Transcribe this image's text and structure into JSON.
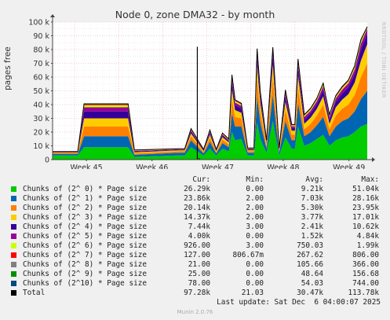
{
  "title": "Node 0, zone DMA32 - by month",
  "watermark": "RRDTOOL / TOBI OETIKER",
  "footer": "Last update: Sat Dec  6 04:00:07 2025",
  "version": "Munin 2.0.76",
  "legend_headers": {
    "cur": "Cur:",
    "min": "Min:",
    "avg": "Avg:",
    "max": "Max:"
  },
  "legend": [
    {
      "label": "Chunks of (2^ 0) * Page size",
      "color": "#00cc00",
      "cur": "26.29k",
      "min": "0.00",
      "avg": "9.21k",
      "max": "51.04k"
    },
    {
      "label": "Chunks of (2^ 1) * Page size",
      "color": "#0066b3",
      "cur": "23.86k",
      "min": "2.00",
      "avg": "7.03k",
      "max": "28.16k"
    },
    {
      "label": "Chunks of (2^ 2) * Page size",
      "color": "#ff8000",
      "cur": "20.14k",
      "min": "2.00",
      "avg": "5.30k",
      "max": "23.95k"
    },
    {
      "label": "Chunks of (2^ 3) * Page size",
      "color": "#ffcc00",
      "cur": "14.37k",
      "min": "2.00",
      "avg": "3.77k",
      "max": "17.01k"
    },
    {
      "label": "Chunks of (2^ 4) * Page size",
      "color": "#330099",
      "cur": "7.44k",
      "min": "3.00",
      "avg": "2.41k",
      "max": "10.62k"
    },
    {
      "label": "Chunks of (2^ 5) * Page size",
      "color": "#990099",
      "cur": "4.00k",
      "min": "0.00",
      "avg": "1.52k",
      "max": "4.84k"
    },
    {
      "label": "Chunks of (2^ 6) * Page size",
      "color": "#ccff00",
      "cur": "926.00",
      "min": "3.00",
      "avg": "750.03",
      "max": "1.99k"
    },
    {
      "label": "Chunks of (2^ 7) * Page size",
      "color": "#ff0000",
      "cur": "127.00",
      "min": "806.67m",
      "avg": "267.62",
      "max": "806.00"
    },
    {
      "label": "Chunks of (2^ 8) * Page size",
      "color": "#808080",
      "cur": "21.00",
      "min": "0.00",
      "avg": "105.66",
      "max": "366.00"
    },
    {
      "label": "Chunks of (2^ 9) * Page size",
      "color": "#008f00",
      "cur": "25.00",
      "min": "0.00",
      "avg": "48.64",
      "max": "156.68"
    },
    {
      "label": "Chunks of (2^10) * Page size",
      "color": "#00487d",
      "cur": "78.00",
      "min": "0.00",
      "avg": "54.03",
      "max": "744.00"
    },
    {
      "label": "Total",
      "color": "#000000",
      "cur": "97.28k",
      "min": "21.03",
      "avg": "30.47k",
      "max": "113.78k"
    }
  ],
  "chart_data": {
    "type": "area",
    "title": "Node 0, zone DMA32 - by month",
    "ylabel": "pages free",
    "ylim": [
      0,
      100000
    ],
    "yticks": [
      0,
      10000,
      20000,
      30000,
      40000,
      50000,
      60000,
      70000,
      80000,
      90000,
      100000
    ],
    "ytick_labels": [
      "0",
      "10 k",
      "20 k",
      "30 k",
      "40 k",
      "50 k",
      "60 k",
      "70 k",
      "80 k",
      "90 k",
      "100 k"
    ],
    "xticks": [
      "Week 45",
      "Week 46",
      "Week 47",
      "Week 48",
      "Week 49"
    ],
    "grid": true,
    "stacked": true,
    "x": [
      0,
      4,
      5,
      12,
      13,
      20,
      21,
      22,
      24,
      25,
      26,
      27,
      28,
      28.5,
      29,
      30,
      31,
      32,
      32.5,
      33,
      34,
      35,
      36,
      37,
      38,
      38.5,
      39,
      40,
      41,
      42,
      43,
      44,
      45,
      46,
      47,
      48,
      49,
      50
    ],
    "series": [
      {
        "name": "Chunks of (2^ 0) * Page size",
        "values": [
          3000,
          3000,
          9000,
          9000,
          2000,
          3000,
          3000,
          9000,
          3000,
          8000,
          3000,
          8000,
          6000,
          20000,
          14000,
          15000,
          3000,
          3000,
          27000,
          15000,
          5000,
          28000,
          3000,
          16000,
          8000,
          8000,
          24000,
          10000,
          12000,
          15000,
          18000,
          10000,
          14000,
          16000,
          17000,
          20000,
          24000,
          26000
        ]
      },
      {
        "name": "Chunks of (2^ 1) * Page size",
        "values": [
          1000,
          1000,
          8000,
          8000,
          1500,
          2000,
          2000,
          5000,
          1500,
          5000,
          1500,
          4000,
          3000,
          14000,
          10000,
          9000,
          2000,
          2000,
          19000,
          12000,
          3000,
          19000,
          2000,
          12000,
          6000,
          6000,
          17000,
          7000,
          8000,
          10000,
          13000,
          7000,
          10000,
          12000,
          13000,
          15000,
          20000,
          24000
        ]
      },
      {
        "name": "Chunks of (2^ 2) * Page size",
        "values": [
          600,
          600,
          7000,
          7000,
          1000,
          1000,
          1000,
          3000,
          1000,
          3000,
          1000,
          2500,
          2000,
          10000,
          7000,
          6000,
          1000,
          1000,
          13000,
          8000,
          2000,
          13000,
          1000,
          8000,
          4000,
          4000,
          12000,
          5000,
          6000,
          7000,
          9000,
          5000,
          8000,
          9000,
          10000,
          12000,
          16000,
          20000
        ]
      },
      {
        "name": "Chunks of (2^ 3) * Page size",
        "values": [
          400,
          400,
          6000,
          6000,
          800,
          700,
          700,
          2000,
          700,
          2000,
          700,
          1800,
          1500,
          7000,
          5000,
          4000,
          800,
          800,
          9000,
          6000,
          1500,
          9000,
          800,
          6000,
          3000,
          3000,
          8000,
          4000,
          4500,
          5000,
          6000,
          4000,
          6000,
          6500,
          7500,
          9000,
          12000,
          14000
        ]
      },
      {
        "name": "Chunks of (2^ 4) * Page size",
        "values": [
          300,
          300,
          5000,
          5000,
          600,
          500,
          500,
          1500,
          500,
          1500,
          500,
          1200,
          1000,
          5000,
          3500,
          3000,
          600,
          600,
          6000,
          4000,
          1000,
          6000,
          600,
          4000,
          2000,
          2000,
          5500,
          3000,
          3000,
          3500,
          4500,
          3000,
          4000,
          4500,
          5000,
          6000,
          8000,
          7400
        ]
      },
      {
        "name": "Chunks of (2^ 5) * Page size",
        "values": [
          200,
          200,
          3000,
          3000,
          400,
          300,
          300,
          900,
          300,
          900,
          300,
          800,
          700,
          3000,
          2000,
          2000,
          400,
          400,
          3500,
          2500,
          700,
          3500,
          400,
          2500,
          1200,
          1200,
          3500,
          2000,
          2000,
          2200,
          2800,
          2000,
          2500,
          2800,
          3000,
          3500,
          4200,
          4000
        ]
      },
      {
        "name": "Chunks of (2^ 6) * Page size",
        "values": [
          150,
          150,
          1500,
          1500,
          300,
          200,
          200,
          500,
          200,
          500,
          200,
          500,
          400,
          1500,
          1000,
          1000,
          300,
          300,
          1800,
          1200,
          400,
          1800,
          300,
          1200,
          700,
          700,
          1800,
          900,
          1000,
          1100,
          1300,
          900,
          1100,
          1200,
          1300,
          1500,
          1700,
          926
        ]
      },
      {
        "name": "Chunks of (2^ 7) * Page size",
        "values": [
          100,
          100,
          500,
          500,
          200,
          100,
          100,
          300,
          100,
          300,
          100,
          250,
          200,
          600,
          500,
          450,
          150,
          150,
          700,
          500,
          200,
          700,
          150,
          500,
          300,
          300,
          700,
          400,
          400,
          450,
          500,
          400,
          450,
          500,
          500,
          600,
          700,
          127
        ]
      },
      {
        "name": "Chunks of (2^ 8) * Page size",
        "values": [
          60,
          60,
          200,
          200,
          100,
          60,
          60,
          150,
          60,
          150,
          60,
          120,
          100,
          250,
          200,
          200,
          80,
          80,
          300,
          200,
          100,
          300,
          80,
          200,
          150,
          150,
          300,
          180,
          180,
          200,
          220,
          180,
          200,
          220,
          220,
          250,
          300,
          21
        ]
      },
      {
        "name": "Chunks of (2^ 9) * Page size",
        "values": [
          40,
          40,
          100,
          100,
          60,
          40,
          40,
          80,
          40,
          80,
          40,
          70,
          60,
          120,
          100,
          100,
          50,
          50,
          140,
          100,
          60,
          140,
          50,
          100,
          80,
          80,
          140,
          90,
          90,
          100,
          110,
          90,
          100,
          110,
          110,
          120,
          140,
          25
        ]
      },
      {
        "name": "Chunks of (2^10) * Page size",
        "values": [
          30,
          30,
          300,
          300,
          60,
          30,
          30,
          80,
          30,
          80,
          30,
          70,
          60,
          200,
          150,
          150,
          40,
          40,
          250,
          150,
          50,
          250,
          40,
          150,
          100,
          100,
          250,
          120,
          130,
          150,
          180,
          130,
          150,
          170,
          190,
          220,
          260,
          78
        ]
      }
    ],
    "total_spikes": [
      {
        "x": 23,
        "y": 82000
      },
      {
        "x": 23.3,
        "y": 1000
      }
    ]
  }
}
